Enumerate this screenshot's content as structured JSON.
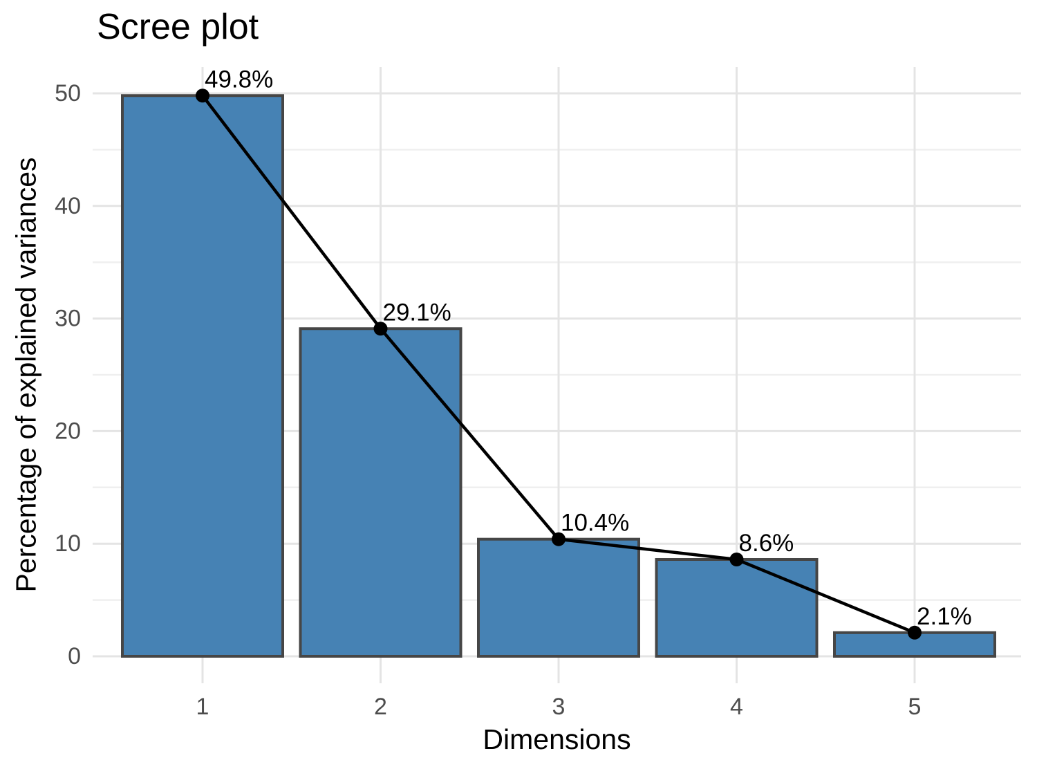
{
  "chart_data": {
    "type": "bar",
    "title": "Scree plot",
    "xlabel": "Dimensions",
    "ylabel": "Percentage of explained variances",
    "categories": [
      "1",
      "2",
      "3",
      "4",
      "5"
    ],
    "values": [
      49.8,
      29.1,
      10.4,
      8.6,
      2.1
    ],
    "point_labels": [
      "49.8%",
      "29.1%",
      "10.4%",
      "8.6%",
      "2.1%"
    ],
    "overlay": "line-with-points",
    "x_axis": {
      "ticks": [
        "1",
        "2",
        "3",
        "4",
        "5"
      ]
    },
    "y_axis": {
      "ticks": [
        0,
        10,
        20,
        30,
        40,
        50
      ],
      "minor_ticks": [
        5,
        15,
        25,
        35,
        45
      ],
      "range": [
        -2.4,
        52.3
      ]
    },
    "grid": {
      "horizontal": "major+minor",
      "vertical": "major-at-ticks",
      "background": "white"
    },
    "colors": {
      "bar_fill": "#4682B4",
      "bar_stroke": "#464646",
      "line": "#000000",
      "point": "#000000",
      "value_label": "#000000",
      "tick_label": "#4d4d4d",
      "axis_title": "#000000",
      "grid_major": "#e4e4e4",
      "grid_minor": "#efefef"
    }
  }
}
